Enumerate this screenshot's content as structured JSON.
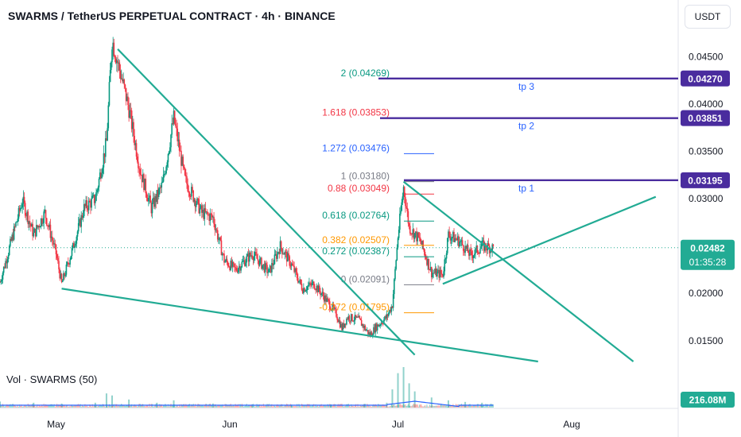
{
  "header": {
    "title": "SWARMS / TetherUS PERPETUAL CONTRACT · 4h · BINANCE",
    "currency": "USDT"
  },
  "volume": {
    "label": "Vol · SWARMS (50)",
    "value": "216.08M"
  },
  "chart_data": {
    "type": "candlestick",
    "symbol": "SWARMS/USDT perpetual",
    "interval": "4h",
    "y_ticks": [
      "0.04500",
      "0.04000",
      "0.03500",
      "0.03000",
      "0.02000",
      "0.01500"
    ],
    "x_ticks": [
      "May",
      "Jun",
      "Jul",
      "Aug"
    ],
    "ylim": [
      0.0128,
      0.0478
    ],
    "price_path": [
      {
        "date": "2025-04-21",
        "price": 0.0212
      },
      {
        "date": "2025-04-23",
        "price": 0.0255
      },
      {
        "date": "2025-04-25",
        "price": 0.0298
      },
      {
        "date": "2025-04-27",
        "price": 0.0262
      },
      {
        "date": "2025-04-29",
        "price": 0.0285
      },
      {
        "date": "2025-05-01",
        "price": 0.0242
      },
      {
        "date": "2025-05-02",
        "price": 0.021
      },
      {
        "date": "2025-05-04",
        "price": 0.0248
      },
      {
        "date": "2025-05-06",
        "price": 0.029
      },
      {
        "date": "2025-05-08",
        "price": 0.03
      },
      {
        "date": "2025-05-10",
        "price": 0.036
      },
      {
        "date": "2025-05-11",
        "price": 0.0468
      },
      {
        "date": "2025-05-13",
        "price": 0.042
      },
      {
        "date": "2025-05-14",
        "price": 0.0395
      },
      {
        "date": "2025-05-16",
        "price": 0.033
      },
      {
        "date": "2025-05-18",
        "price": 0.029
      },
      {
        "date": "2025-05-20",
        "price": 0.0315
      },
      {
        "date": "2025-05-22",
        "price": 0.0385
      },
      {
        "date": "2025-05-24",
        "price": 0.032
      },
      {
        "date": "2025-05-27",
        "price": 0.0285
      },
      {
        "date": "2025-05-29",
        "price": 0.028
      },
      {
        "date": "2025-05-31",
        "price": 0.0235
      },
      {
        "date": "2025-06-02",
        "price": 0.0225
      },
      {
        "date": "2025-06-05",
        "price": 0.0242
      },
      {
        "date": "2025-06-08",
        "price": 0.0222
      },
      {
        "date": "2025-06-10",
        "price": 0.025
      },
      {
        "date": "2025-06-12",
        "price": 0.023
      },
      {
        "date": "2025-06-14",
        "price": 0.0205
      },
      {
        "date": "2025-06-16",
        "price": 0.021
      },
      {
        "date": "2025-06-18",
        "price": 0.0195
      },
      {
        "date": "2025-06-20",
        "price": 0.0178
      },
      {
        "date": "2025-06-21",
        "price": 0.0163
      },
      {
        "date": "2025-06-22",
        "price": 0.0175
      },
      {
        "date": "2025-06-24",
        "price": 0.0172
      },
      {
        "date": "2025-06-26",
        "price": 0.0156
      },
      {
        "date": "2025-06-27",
        "price": 0.0164
      },
      {
        "date": "2025-06-29",
        "price": 0.0175
      },
      {
        "date": "2025-06-30",
        "price": 0.0188
      },
      {
        "date": "2025-07-01",
        "price": 0.026
      },
      {
        "date": "2025-07-02",
        "price": 0.0312
      },
      {
        "date": "2025-07-03",
        "price": 0.027
      },
      {
        "date": "2025-07-05",
        "price": 0.0255
      },
      {
        "date": "2025-07-07",
        "price": 0.0222
      },
      {
        "date": "2025-07-09",
        "price": 0.022
      },
      {
        "date": "2025-07-10",
        "price": 0.0262
      },
      {
        "date": "2025-07-12",
        "price": 0.0255
      },
      {
        "date": "2025-07-14",
        "price": 0.024
      },
      {
        "date": "2025-07-16",
        "price": 0.025
      },
      {
        "date": "2025-07-18",
        "price": 0.0248
      }
    ],
    "volume_bars": [
      {
        "date": "2025-04-21",
        "volume": 0.15
      },
      {
        "date": "2025-04-27",
        "volume": 0.12
      },
      {
        "date": "2025-05-02",
        "volume": 0.1
      },
      {
        "date": "2025-05-08",
        "volume": 0.12
      },
      {
        "date": "2025-05-10",
        "volume": 0.35
      },
      {
        "date": "2025-05-11",
        "volume": 0.3
      },
      {
        "date": "2025-05-14",
        "volume": 0.2
      },
      {
        "date": "2025-05-19",
        "volume": 0.12
      },
      {
        "date": "2025-05-22",
        "volume": 0.18
      },
      {
        "date": "2025-05-29",
        "volume": 0.1
      },
      {
        "date": "2025-06-05",
        "volume": 0.08
      },
      {
        "date": "2025-06-12",
        "volume": 0.07
      },
      {
        "date": "2025-06-19",
        "volume": 0.08
      },
      {
        "date": "2025-06-25",
        "volume": 0.09
      },
      {
        "date": "2025-06-29",
        "volume": 0.12
      },
      {
        "date": "2025-06-30",
        "volume": 0.45
      },
      {
        "date": "2025-07-01",
        "volume": 0.85
      },
      {
        "date": "2025-07-02",
        "volume": 1.0
      },
      {
        "date": "2025-07-03",
        "volume": 0.6
      },
      {
        "date": "2025-07-04",
        "volume": 0.4
      },
      {
        "date": "2025-07-07",
        "volume": 0.25
      },
      {
        "date": "2025-07-10",
        "volume": 0.18
      },
      {
        "date": "2025-07-13",
        "volume": 0.14
      },
      {
        "date": "2025-07-16",
        "volume": 0.12
      }
    ],
    "fib_levels": [
      {
        "label": "2 (0.04269)",
        "price": 0.04269,
        "color": "#089981"
      },
      {
        "label": "1.618 (0.03853)",
        "price": 0.03853,
        "color": "#f23645"
      },
      {
        "label": "1.272 (0.03476)",
        "price": 0.03476,
        "color": "#2962ff"
      },
      {
        "label": "1 (0.03180)",
        "price": 0.0318,
        "color": "#787b86"
      },
      {
        "label": "0.88 (0.03049)",
        "price": 0.03049,
        "color": "#f23645"
      },
      {
        "label": "0.618 (0.02764)",
        "price": 0.02764,
        "color": "#089981"
      },
      {
        "label": "0.382 (0.02507)",
        "price": 0.02507,
        "color": "#ff9800"
      },
      {
        "label": "0.272 (0.02387)",
        "price": 0.02387,
        "color": "#089981"
      },
      {
        "label": "0 (0.02091)",
        "price": 0.02091,
        "color": "#787b86"
      },
      {
        "label": "-0.272 (0.01795)",
        "price": 0.01795,
        "color": "#ff9800"
      }
    ],
    "targets": [
      {
        "label": "tp 3",
        "price": 0.0427,
        "price_label": "0.04270"
      },
      {
        "label": "tp 2",
        "price": 0.03851,
        "price_label": "0.03851"
      },
      {
        "label": "tp 1",
        "price": 0.03195,
        "price_label": "0.03195"
      }
    ],
    "current_price": {
      "price": 0.02482,
      "label": "0.02482",
      "countdown": "01:35:28"
    },
    "trend_lines": [
      {
        "from": {
          "date": "2025-05-12",
          "price": 0.0458
        },
        "to": {
          "date": "2025-07-04",
          "price": 0.0135
        }
      },
      {
        "from": {
          "date": "2025-05-02",
          "price": 0.0205
        },
        "to": {
          "date": "2025-07-26",
          "price": 0.0128
        }
      },
      {
        "from": {
          "date": "2025-07-02",
          "price": 0.0318
        },
        "to": {
          "date": "2025-08-12",
          "price": 0.0128
        }
      },
      {
        "from": {
          "date": "2025-07-09",
          "price": 0.021
        },
        "to": {
          "date": "2025-08-16",
          "price": 0.0302
        }
      }
    ],
    "colors": {
      "up": "#089981",
      "down": "#f23645",
      "trend": "#22ab94",
      "target_line": "#4a2c9e",
      "target_text": "#2962ff",
      "price_tag": "#22ab94",
      "volume_ma": "#2962ff"
    }
  }
}
